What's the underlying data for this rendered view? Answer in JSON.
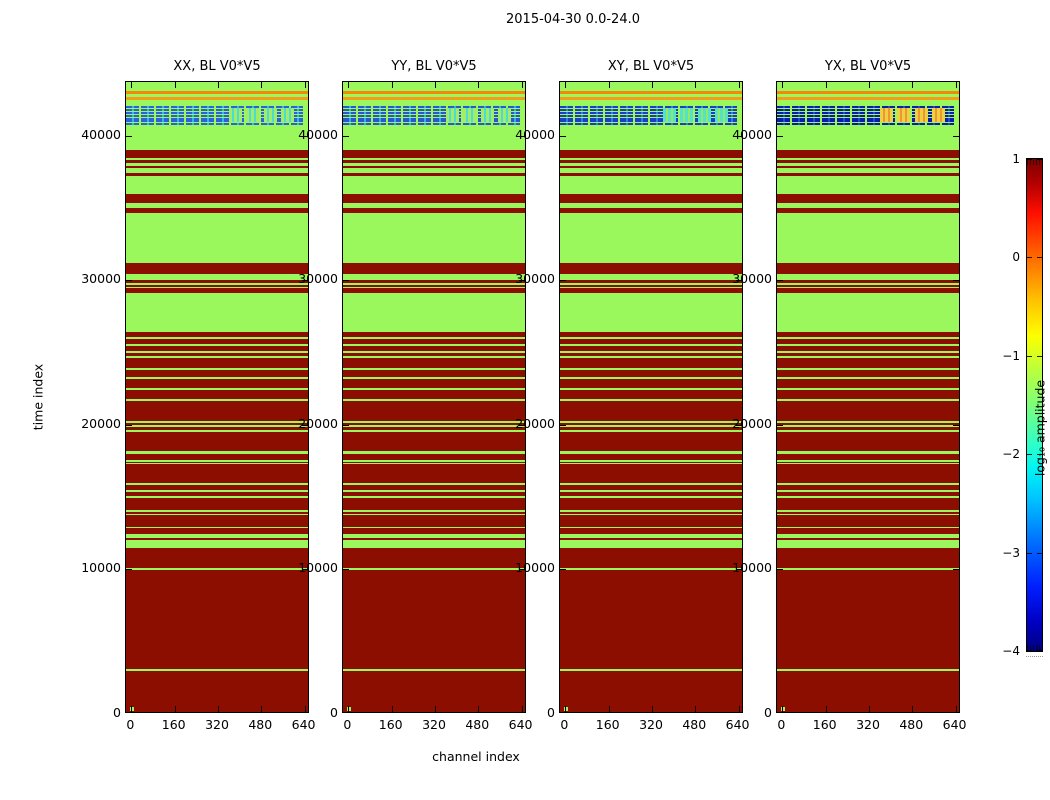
{
  "figure": {
    "title": "2015-04-30 0.0-24.0",
    "xlabel": "channel index",
    "ylabel": "time index"
  },
  "subplots": [
    {
      "id": "xx",
      "title": "XX, BL V0*V5"
    },
    {
      "id": "yy",
      "title": "YY, BL V0*V5"
    },
    {
      "id": "xy",
      "title": "XY, BL V0*V5"
    },
    {
      "id": "yx",
      "title": "YX, BL V0*V5"
    }
  ],
  "axes": {
    "xticks": [
      "0",
      "160",
      "320",
      "480",
      "640"
    ],
    "yticks": [
      "0",
      "10000",
      "20000",
      "30000",
      "40000"
    ],
    "xlim": [
      -20,
      660
    ],
    "ylim": [
      0,
      43700
    ]
  },
  "colorbar": {
    "label": "log₁₀ amplitude",
    "ticks": [
      "1",
      "0",
      "−1",
      "−2",
      "−3",
      "−4"
    ]
  },
  "chart_data": {
    "type": "heatmap",
    "title": "2015-04-30 0.0-24.0",
    "xlabel": "channel index",
    "ylabel": "time index",
    "x_range": [
      0,
      640
    ],
    "y_range": [
      0,
      43700
    ],
    "colorbar_label": "log10 amplitude",
    "colorbar_range": [
      -4,
      1
    ],
    "colormap": "jet",
    "panels": [
      "XX, BL V0*V5",
      "YY, BL V0*V5",
      "XY, BL V0*V5",
      "YX, BL V0*V5"
    ],
    "legend_note": "horizontal bands of constant log10 amplitude vs time index; identical across the four polarization panels except the RFI band colors near time 41000-42200",
    "colors": {
      "bg": "#9AF75C",
      "sat": "#8B0E00",
      "or1": "#F5870A",
      "or2": "#F89A1A"
    },
    "bands": [
      [
        43700,
        43100,
        "bg"
      ],
      [
        43100,
        42840,
        "or1"
      ],
      [
        42840,
        42670,
        "bg"
      ],
      [
        42670,
        42460,
        "or2"
      ],
      [
        42460,
        42180,
        "bg"
      ],
      [
        42180,
        40660,
        "rfi"
      ],
      [
        40660,
        39000,
        "bg"
      ],
      [
        39000,
        38420,
        "sat"
      ],
      [
        38420,
        38280,
        "bg"
      ],
      [
        38280,
        38070,
        "sat"
      ],
      [
        38070,
        37910,
        "bg"
      ],
      [
        37910,
        37730,
        "sat"
      ],
      [
        37730,
        37400,
        "bg"
      ],
      [
        37400,
        37200,
        "sat"
      ],
      [
        37200,
        35930,
        "bg"
      ],
      [
        35930,
        35350,
        "sat"
      ],
      [
        35350,
        34960,
        "bg"
      ],
      [
        34960,
        34620,
        "sat"
      ],
      [
        34620,
        31200,
        "bg"
      ],
      [
        31200,
        30400,
        "sat"
      ],
      [
        30400,
        30030,
        "bg"
      ],
      [
        30030,
        29800,
        "sat"
      ],
      [
        29800,
        29660,
        "bg"
      ],
      [
        29660,
        29520,
        "sat"
      ],
      [
        29520,
        29430,
        "bg"
      ],
      [
        29430,
        29090,
        "sat"
      ],
      [
        29090,
        26410,
        "bg"
      ],
      [
        26410,
        26060,
        "sat"
      ],
      [
        26060,
        25930,
        "bg"
      ],
      [
        25930,
        25580,
        "sat"
      ],
      [
        25580,
        25460,
        "bg"
      ],
      [
        25460,
        25080,
        "sat"
      ],
      [
        25080,
        24960,
        "bg"
      ],
      [
        24960,
        24750,
        "sat"
      ],
      [
        24750,
        24610,
        "bg"
      ],
      [
        24610,
        23900,
        "sat"
      ],
      [
        23900,
        23760,
        "bg"
      ],
      [
        23760,
        23280,
        "sat"
      ],
      [
        23280,
        23180,
        "bg"
      ],
      [
        23180,
        22520,
        "sat"
      ],
      [
        22520,
        22380,
        "bg"
      ],
      [
        22380,
        21760,
        "sat"
      ],
      [
        21760,
        21620,
        "bg"
      ],
      [
        21620,
        20260,
        "sat"
      ],
      [
        20260,
        20100,
        "bg"
      ],
      [
        20100,
        19980,
        "sat"
      ],
      [
        19980,
        19840,
        "bg"
      ],
      [
        19840,
        19630,
        "sat"
      ],
      [
        19630,
        19500,
        "bg"
      ],
      [
        19500,
        18180,
        "sat"
      ],
      [
        18180,
        18000,
        "bg"
      ],
      [
        18000,
        17540,
        "sat"
      ],
      [
        17540,
        17440,
        "bg"
      ],
      [
        17440,
        17360,
        "sat"
      ],
      [
        17360,
        17260,
        "bg"
      ],
      [
        17260,
        16000,
        "sat"
      ],
      [
        16000,
        15830,
        "bg"
      ],
      [
        15830,
        15470,
        "sat"
      ],
      [
        15470,
        15350,
        "bg"
      ],
      [
        15350,
        15100,
        "sat"
      ],
      [
        15100,
        14960,
        "bg"
      ],
      [
        14960,
        14080,
        "sat"
      ],
      [
        14080,
        13970,
        "bg"
      ],
      [
        13970,
        13850,
        "sat"
      ],
      [
        13850,
        13760,
        "bg"
      ],
      [
        13760,
        12930,
        "sat"
      ],
      [
        12930,
        12840,
        "bg"
      ],
      [
        12840,
        12470,
        "sat"
      ],
      [
        12470,
        12190,
        "bg"
      ],
      [
        12190,
        12010,
        "sat"
      ],
      [
        12010,
        11500,
        "bg"
      ],
      [
        11500,
        10070,
        "sat"
      ],
      [
        10070,
        9930,
        "bg"
      ],
      [
        9930,
        3090,
        "sat"
      ],
      [
        3090,
        2970,
        "bg"
      ],
      [
        2970,
        0,
        "sat"
      ]
    ],
    "rfi_styles": {
      "xx": {
        "lineA": "#2C62D4",
        "lineB": "#30B9E6",
        "block": "#A2EC6A",
        "blockAlt": "#4BDCD2"
      },
      "yy": {
        "lineA": "#2A58CC",
        "lineB": "#2FB2E2",
        "block": "#A2EC6A",
        "blockAlt": "#4BDCD2"
      },
      "xy": {
        "lineA": "#1C3FC2",
        "lineB": "#2A86D8",
        "block": "#55E2CC",
        "blockAlt": "#93EA62"
      },
      "yx": {
        "lineA": "#0C1DA6",
        "lineB": "#1E4FC8",
        "block": "#EBD23F",
        "blockAlt": "#F09437"
      }
    }
  }
}
